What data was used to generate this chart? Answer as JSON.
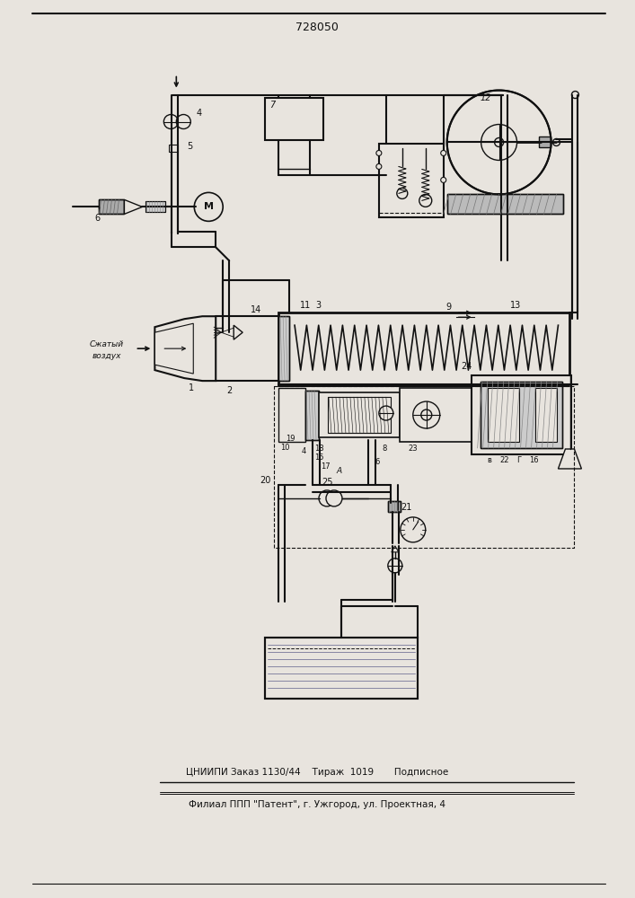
{
  "title": "728050",
  "footer1": "ЦНИИПИ Заказ 1130/44    Тираж  1019       Подписное",
  "footer2": "Филиал ППП \"Патент\", г. Ужгород, ул. Проектная, 4",
  "bg_color": "#e8e4de",
  "line_color": "#111111",
  "figsize": [
    7.07,
    10.0
  ],
  "dpi": 100
}
